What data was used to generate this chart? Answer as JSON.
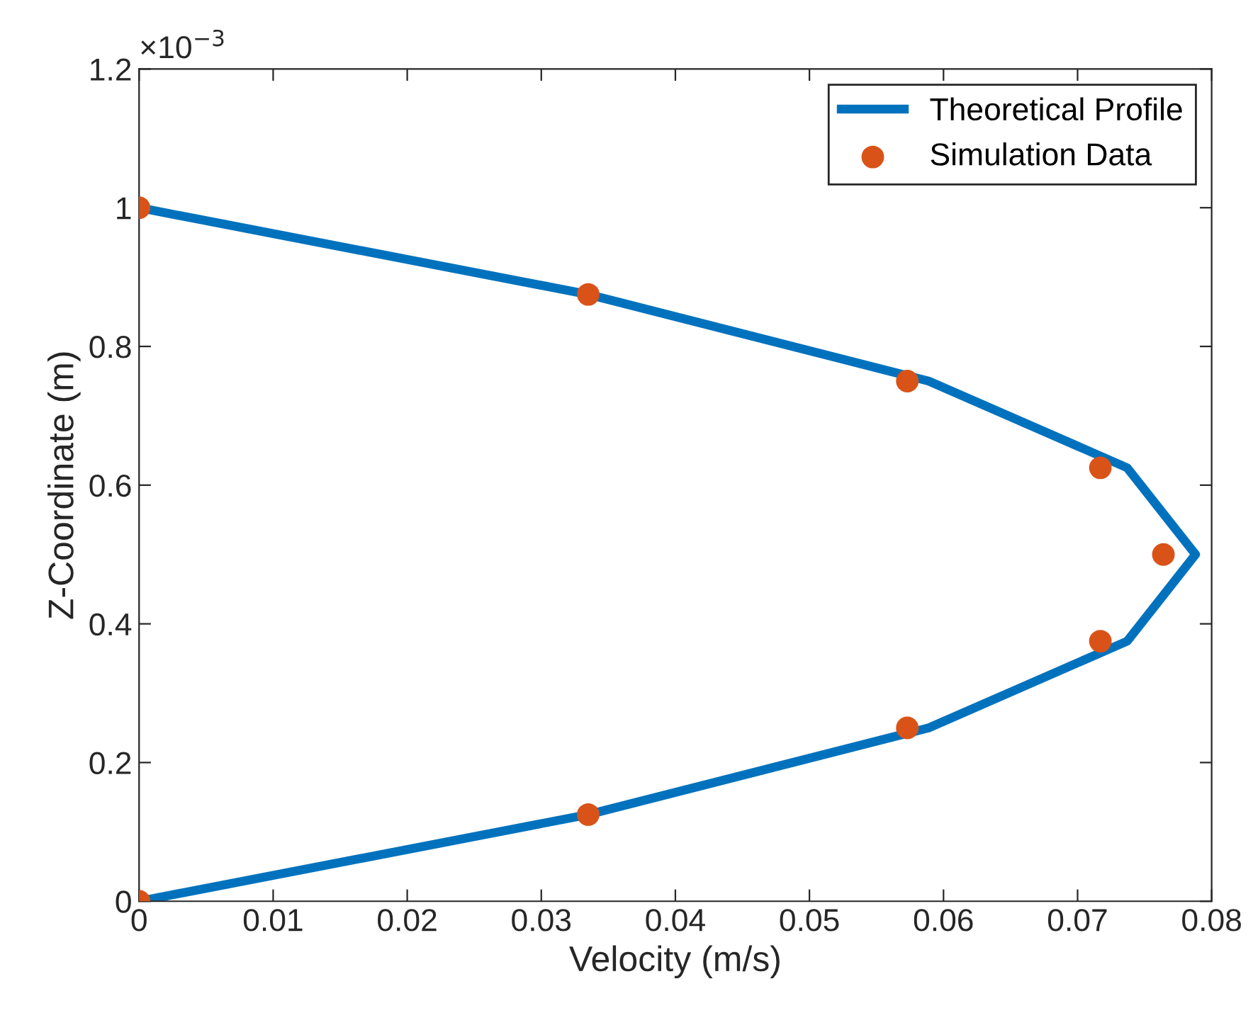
{
  "chart_data": {
    "type": "line",
    "xlabel": "Velocity (m/s)",
    "ylabel": "Z-Coordinate (m)",
    "xlim": [
      0,
      0.08
    ],
    "xticks": [
      0,
      0.01,
      0.02,
      0.03,
      0.04,
      0.05,
      0.06,
      0.07,
      0.08
    ],
    "ylim": [
      0,
      1.2
    ],
    "yticks": [
      0,
      0.2,
      0.4,
      0.6,
      0.8,
      1,
      1.2
    ],
    "annotations": [
      "×10$^{−3}$"
    ],
    "grid": false,
    "legend": "top right",
    "series": [
      {
        "name": "Theoretical Profile",
        "color": "#0072bd",
        "marker": "none",
        "line_style": "solid",
        "x": [
          0,
          0.0335,
          0.0589,
          0.0737,
          0.0788,
          0.0737,
          0.0589,
          0.0335,
          0
        ],
        "values": [
          0,
          0.125,
          0.25,
          0.375,
          0.5,
          0.625,
          0.75,
          0.875,
          1
        ]
      },
      {
        "name": "Simulation Data",
        "type": "scatter",
        "color": "#d95319",
        "marker": "circle",
        "x": [
          0,
          0.0335,
          0.0573,
          0.0717,
          0.0764,
          0.0717,
          0.0573,
          0.0335,
          0
        ],
        "values": [
          0,
          0.125,
          0.25,
          0.375,
          0.5,
          0.625,
          0.75,
          0.875,
          1
        ]
      }
    ]
  }
}
